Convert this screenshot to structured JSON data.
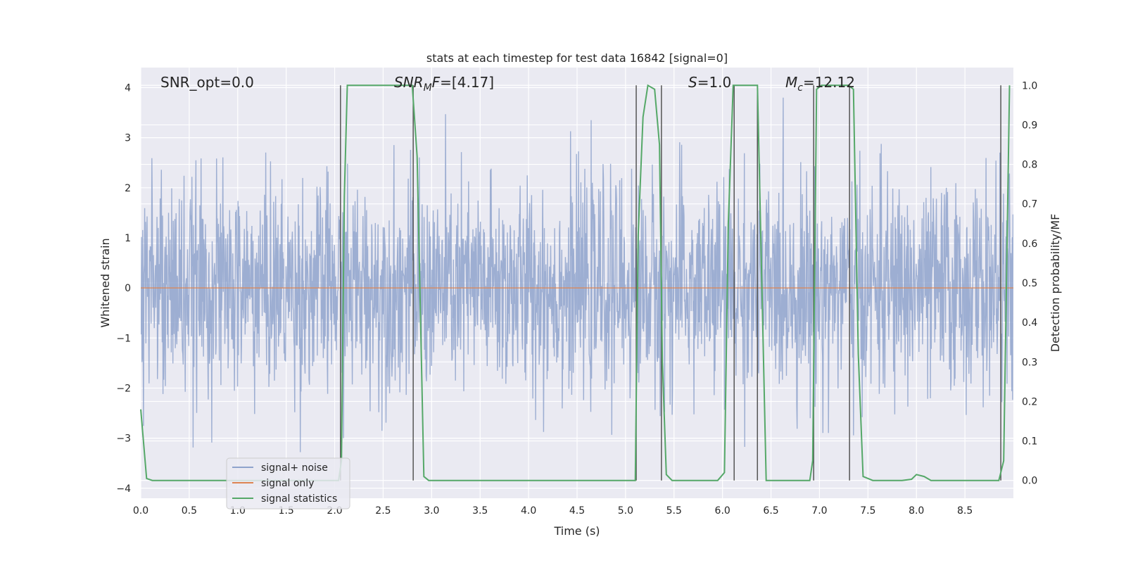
{
  "chart_data": {
    "type": "line",
    "title": "stats at each timestep for test data 16842 [signal=0]",
    "xlabel": "Time (s)",
    "ylabel": "Whitened strain",
    "y2label": "Detection probability/MF",
    "xlim": [
      0,
      9
    ],
    "ylim": [
      -4.2,
      4.4
    ],
    "y2lim": [
      -0.045,
      1.045
    ],
    "x_ticks": [
      "0.0",
      "0.5",
      "1.0",
      "1.5",
      "2.0",
      "2.5",
      "3.0",
      "3.5",
      "4.0",
      "4.5",
      "5.0",
      "5.5",
      "6.0",
      "6.5",
      "7.0",
      "7.5",
      "8.0",
      "8.5"
    ],
    "y_ticks": [
      "4",
      "3",
      "2",
      "1",
      "0",
      "−1",
      "−2",
      "−3",
      "−4"
    ],
    "y2_ticks": [
      "1.0",
      "0.9",
      "0.8",
      "0.7",
      "0.6",
      "0.5",
      "0.4",
      "0.3",
      "0.2",
      "0.1",
      "0.0"
    ],
    "grid": true,
    "legend_position": "lower-left",
    "annotations": {
      "snr_opt": "SNR_opt=0.0",
      "snr_mf_sym": "SNR",
      "snr_mf_sub": "M",
      "snr_mf_sym2": "F",
      "snr_mf_val": "=[4.17]",
      "s_sym": "S",
      "s_val": "=1.0",
      "mc_sym": "M",
      "mc_sub": "c",
      "mc_val": "=12.12"
    },
    "series": [
      {
        "name": "signal+ noise",
        "color": "#8fa3cc",
        "description": "whitened noise, roughly within ±2.5 with spikes up to ±3.8",
        "amplitude_range": [
          -3.8,
          3.8
        ]
      },
      {
        "name": "signal only",
        "color": "#dd8452",
        "x": [
          0,
          9
        ],
        "y": [
          0,
          0
        ]
      },
      {
        "name": "signal statistics",
        "color": "#55a868",
        "axis": "right",
        "x": [
          0.0,
          0.06,
          0.12,
          2.04,
          2.07,
          2.1,
          2.13,
          2.6,
          2.8,
          2.85,
          2.92,
          2.97,
          5.1,
          5.13,
          5.18,
          5.23,
          5.3,
          5.35,
          5.38,
          5.42,
          5.48,
          5.95,
          6.02,
          6.06,
          6.11,
          6.17,
          6.36,
          6.45,
          6.5,
          6.9,
          6.93,
          6.97,
          7.02,
          7.08,
          7.3,
          7.35,
          7.4,
          7.45,
          7.55,
          7.85,
          7.95,
          8.0,
          8.08,
          8.15,
          8.85,
          8.9,
          8.96
        ],
        "y": [
          0.18,
          0.005,
          0.0,
          0.0,
          0.05,
          0.72,
          1.0,
          1.0,
          1.0,
          0.82,
          0.01,
          0.0,
          0.0,
          0.62,
          0.92,
          1.0,
          0.99,
          0.85,
          0.3,
          0.015,
          0.0,
          0.0,
          0.02,
          0.65,
          1.0,
          1.0,
          1.0,
          0.0,
          0.0,
          0.0,
          0.05,
          0.99,
          1.0,
          1.0,
          1.0,
          0.99,
          0.32,
          0.01,
          0.0,
          0.0,
          0.003,
          0.015,
          0.01,
          0.0,
          0.0,
          0.05,
          1.0
        ]
      }
    ],
    "vertical_markers_s": [
      2.06,
      2.81,
      5.11,
      5.37,
      6.12,
      6.36,
      6.94,
      7.31,
      8.87
    ]
  }
}
